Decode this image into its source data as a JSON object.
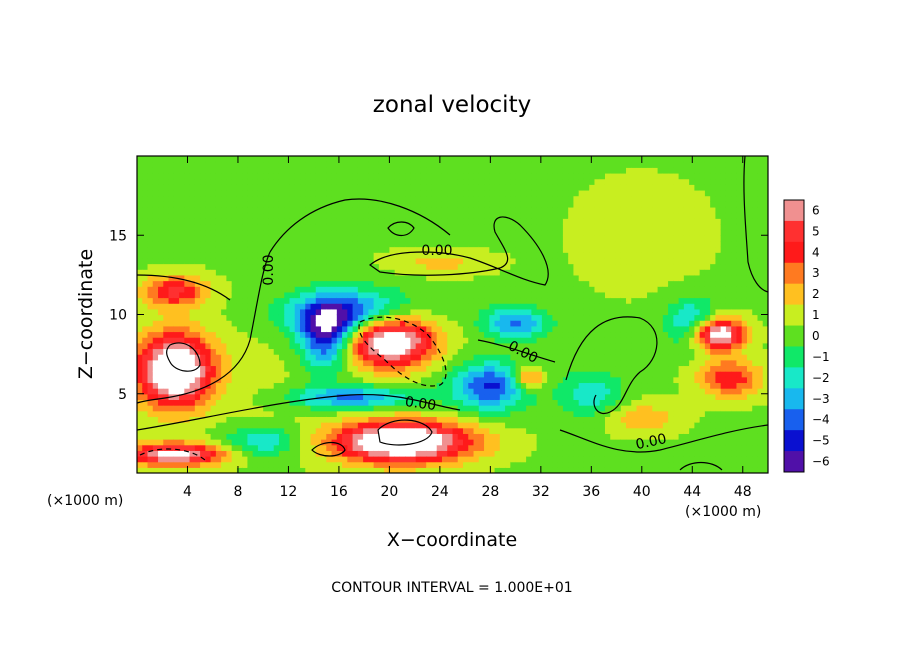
{
  "chart_data": {
    "type": "heatmap",
    "title": "zonal velocity",
    "xlabel": "X−coordinate",
    "ylabel": "Z−coordinate",
    "x_unit_label": "(×1000 m)",
    "y_unit_label": "(×1000 m)",
    "xlim": [
      0,
      50
    ],
    "ylim": [
      0,
      20
    ],
    "x_ticks": [
      4,
      8,
      12,
      16,
      20,
      24,
      28,
      32,
      36,
      40,
      44,
      48
    ],
    "y_ticks": [
      5,
      10,
      15
    ],
    "colorbar": {
      "min": -6,
      "max": 6,
      "ticks": [
        "6",
        "5",
        "4",
        "3",
        "2",
        "1",
        "0",
        "−1",
        "−2",
        "−3",
        "−4",
        "−5",
        "−6"
      ],
      "colors": [
        "#f09090",
        "#ff3030",
        "#ff1a1a",
        "#ff7a20",
        "#ffc020",
        "#c8ee20",
        "#5ee020",
        "#10e868",
        "#18e8c8",
        "#18b8ee",
        "#1860ee",
        "#0a10d0",
        "#5010a8"
      ]
    },
    "contour_labels": [
      "0.00",
      "0.00",
      "0.00",
      "0.00",
      "0.00"
    ],
    "note": "CONTOUR INTERVAL = 1.000E+01",
    "field_features": [
      {
        "x": 24,
        "y": 13.3,
        "value": 1.5,
        "sx": 4,
        "sy": 0.8
      },
      {
        "x": 40,
        "y": 15,
        "value": 0.6,
        "sx": 6,
        "sy": 4
      },
      {
        "x": 10,
        "y": 6,
        "value": 0.5,
        "sx": 3,
        "sy": 5
      },
      {
        "x": 3,
        "y": 11.5,
        "value": 4.5,
        "sx": 2.5,
        "sy": 1.0
      },
      {
        "x": 3,
        "y": 6.5,
        "value": 9.0,
        "sx": 3.0,
        "sy": 2.3
      },
      {
        "x": 20,
        "y": 8.5,
        "value": 9.0,
        "sx": 3.5,
        "sy": 1.7
      },
      {
        "x": 21,
        "y": 2.0,
        "value": 9.0,
        "sx": 5.5,
        "sy": 1.3
      },
      {
        "x": 3,
        "y": 1.2,
        "value": 7.0,
        "sx": 4.0,
        "sy": 0.7
      },
      {
        "x": 46,
        "y": 8.8,
        "value": 8.0,
        "sx": 2.0,
        "sy": 1.0
      },
      {
        "x": 47,
        "y": 6.0,
        "value": 4.0,
        "sx": 2.5,
        "sy": 1.2
      },
      {
        "x": 31,
        "y": 6.0,
        "value": 4.0,
        "sx": 1.2,
        "sy": 0.7
      },
      {
        "x": 40,
        "y": 3.5,
        "value": 2.0,
        "sx": 3,
        "sy": 1
      },
      {
        "x": 17,
        "y": 10.0,
        "value": -6.0,
        "sx": 5.0,
        "sy": 1.5
      },
      {
        "x": 15,
        "y": 8.5,
        "value": -5.0,
        "sx": 2.0,
        "sy": 2.0
      },
      {
        "x": 28,
        "y": 5.5,
        "value": -5.0,
        "sx": 3.0,
        "sy": 1.5
      },
      {
        "x": 30,
        "y": 9.5,
        "value": -4.0,
        "sx": 2.5,
        "sy": 1.0
      },
      {
        "x": 17,
        "y": 4.8,
        "value": -4.0,
        "sx": 5.0,
        "sy": 0.7
      },
      {
        "x": 44,
        "y": 9.5,
        "value": -3.5,
        "sx": 2.0,
        "sy": 1.5
      },
      {
        "x": 10,
        "y": 2.0,
        "value": -3.0,
        "sx": 3.0,
        "sy": 1.0
      },
      {
        "x": 36,
        "y": 5.0,
        "value": -2.5,
        "sx": 2.5,
        "sy": 1.5
      }
    ]
  }
}
